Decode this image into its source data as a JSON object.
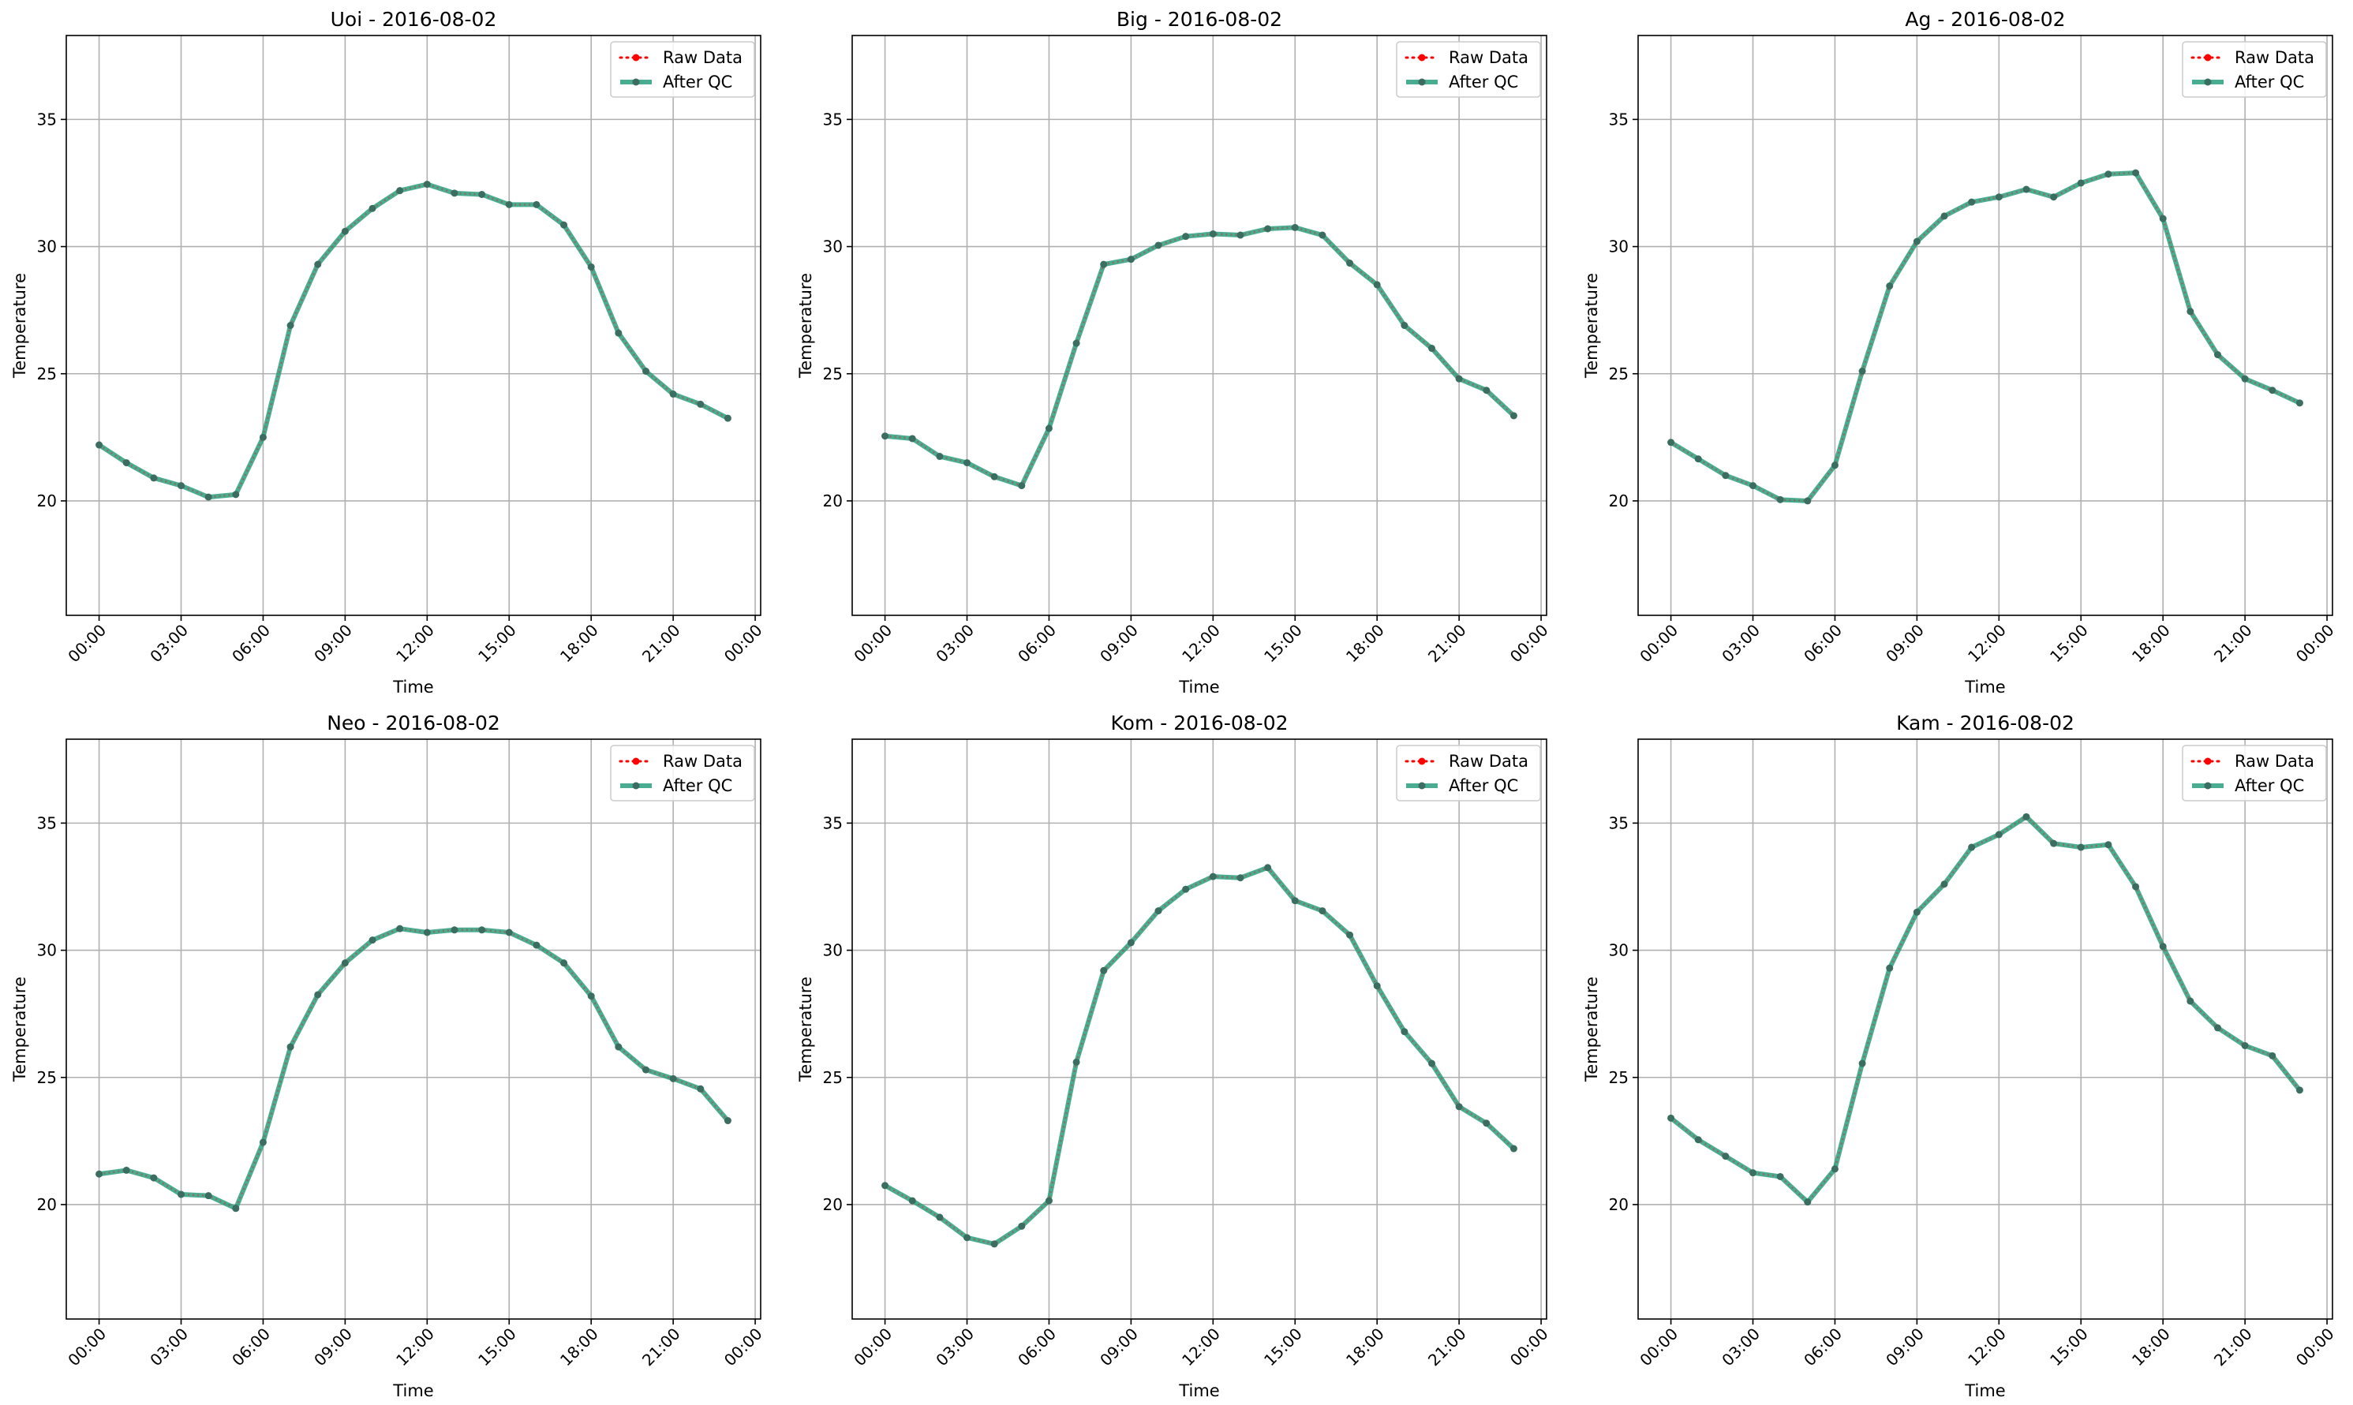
{
  "colors": {
    "raw": "#ff0000",
    "qc": "#2a9d7c",
    "qc_marker": "#3b6e60",
    "grid": "#b0b0b0",
    "axes": "#000000",
    "legend_border": "#cccccc"
  },
  "legend": {
    "raw_label": "Raw Data",
    "qc_label": "After QC",
    "placement": "upper right"
  },
  "chart_data": [
    {
      "type": "line",
      "title": "Uoi - 2016-08-02",
      "xlabel": "Time",
      "ylabel": "Temperature",
      "x": [
        0,
        1,
        2,
        3,
        4,
        5,
        6,
        7,
        8,
        9,
        10,
        11,
        12,
        13,
        14,
        15,
        16,
        17,
        18,
        19,
        20,
        21,
        22,
        23
      ],
      "x_unit": "hour",
      "xlim": [
        -1.2,
        24.2
      ],
      "ylim": [
        15.5,
        38.3
      ],
      "xticks": [
        "00:00",
        "03:00",
        "06:00",
        "09:00",
        "12:00",
        "15:00",
        "18:00",
        "21:00",
        "00:00"
      ],
      "yticks": [
        20,
        25,
        30,
        35
      ],
      "grid": true,
      "series": [
        {
          "name": "Raw Data",
          "values": [
            22.2,
            21.5,
            20.9,
            20.6,
            20.15,
            20.25,
            22.5,
            26.9,
            29.3,
            30.6,
            31.5,
            32.2,
            32.45,
            32.1,
            32.05,
            31.65,
            31.65,
            30.85,
            29.2,
            26.6,
            25.1,
            24.2,
            23.8,
            23.25
          ]
        },
        {
          "name": "After QC",
          "values": [
            22.2,
            21.5,
            20.9,
            20.6,
            20.15,
            20.25,
            22.5,
            26.9,
            29.3,
            30.6,
            31.5,
            32.2,
            32.45,
            32.1,
            32.05,
            31.65,
            31.65,
            30.85,
            29.2,
            26.6,
            25.1,
            24.2,
            23.8,
            23.25
          ]
        }
      ]
    },
    {
      "type": "line",
      "title": "Big - 2016-08-02",
      "xlabel": "Time",
      "ylabel": "Temperature",
      "x": [
        0,
        1,
        2,
        3,
        4,
        5,
        6,
        7,
        8,
        9,
        10,
        11,
        12,
        13,
        14,
        15,
        16,
        17,
        18,
        19,
        20,
        21,
        22,
        23
      ],
      "x_unit": "hour",
      "xlim": [
        -1.2,
        24.2
      ],
      "ylim": [
        15.5,
        38.3
      ],
      "xticks": [
        "00:00",
        "03:00",
        "06:00",
        "09:00",
        "12:00",
        "15:00",
        "18:00",
        "21:00",
        "00:00"
      ],
      "yticks": [
        20,
        25,
        30,
        35
      ],
      "grid": true,
      "series": [
        {
          "name": "Raw Data",
          "values": [
            22.55,
            22.45,
            21.75,
            21.5,
            20.95,
            20.6,
            22.85,
            26.2,
            29.3,
            29.5,
            30.05,
            30.4,
            30.5,
            30.45,
            30.7,
            30.75,
            30.45,
            29.35,
            28.5,
            26.9,
            26.0,
            24.8,
            24.35,
            23.35
          ]
        },
        {
          "name": "After QC",
          "values": [
            22.55,
            22.45,
            21.75,
            21.5,
            20.95,
            20.6,
            22.85,
            26.2,
            29.3,
            29.5,
            30.05,
            30.4,
            30.5,
            30.45,
            30.7,
            30.75,
            30.45,
            29.35,
            28.5,
            26.9,
            26.0,
            24.8,
            24.35,
            23.35
          ]
        }
      ]
    },
    {
      "type": "line",
      "title": "Ag - 2016-08-02",
      "xlabel": "Time",
      "ylabel": "Temperature",
      "x": [
        0,
        1,
        2,
        3,
        4,
        5,
        6,
        7,
        8,
        9,
        10,
        11,
        12,
        13,
        14,
        15,
        16,
        17,
        18,
        19,
        20,
        21,
        22,
        23
      ],
      "x_unit": "hour",
      "xlim": [
        -1.2,
        24.2
      ],
      "ylim": [
        15.5,
        38.3
      ],
      "xticks": [
        "00:00",
        "03:00",
        "06:00",
        "09:00",
        "12:00",
        "15:00",
        "18:00",
        "21:00",
        "00:00"
      ],
      "yticks": [
        20,
        25,
        30,
        35
      ],
      "grid": true,
      "series": [
        {
          "name": "Raw Data",
          "values": [
            22.3,
            21.65,
            21.0,
            20.6,
            20.05,
            20.0,
            21.4,
            25.1,
            28.45,
            30.2,
            31.2,
            31.75,
            31.95,
            32.25,
            31.95,
            32.5,
            32.85,
            32.9,
            31.1,
            27.45,
            25.75,
            24.8,
            24.35,
            23.85
          ]
        },
        {
          "name": "After QC",
          "values": [
            22.3,
            21.65,
            21.0,
            20.6,
            20.05,
            20.0,
            21.4,
            25.1,
            28.45,
            30.2,
            31.2,
            31.75,
            31.95,
            32.25,
            31.95,
            32.5,
            32.85,
            32.9,
            31.1,
            27.45,
            25.75,
            24.8,
            24.35,
            23.85
          ]
        }
      ]
    },
    {
      "type": "line",
      "title": "Neo - 2016-08-02",
      "xlabel": "Time",
      "ylabel": "Temperature",
      "x": [
        0,
        1,
        2,
        3,
        4,
        5,
        6,
        7,
        8,
        9,
        10,
        11,
        12,
        13,
        14,
        15,
        16,
        17,
        18,
        19,
        20,
        21,
        22,
        23
      ],
      "x_unit": "hour",
      "xlim": [
        -1.2,
        24.2
      ],
      "ylim": [
        15.5,
        38.3
      ],
      "xticks": [
        "00:00",
        "03:00",
        "06:00",
        "09:00",
        "12:00",
        "15:00",
        "18:00",
        "21:00",
        "00:00"
      ],
      "yticks": [
        20,
        25,
        30,
        35
      ],
      "grid": true,
      "series": [
        {
          "name": "Raw Data",
          "values": [
            21.2,
            21.35,
            21.05,
            20.4,
            20.35,
            19.85,
            22.45,
            26.2,
            28.25,
            29.5,
            30.4,
            30.85,
            30.7,
            30.8,
            30.8,
            30.7,
            30.2,
            29.5,
            28.2,
            26.2,
            25.3,
            24.95,
            24.55,
            23.3
          ]
        },
        {
          "name": "After QC",
          "values": [
            21.2,
            21.35,
            21.05,
            20.4,
            20.35,
            19.85,
            22.45,
            26.2,
            28.25,
            29.5,
            30.4,
            30.85,
            30.7,
            30.8,
            30.8,
            30.7,
            30.2,
            29.5,
            28.2,
            26.2,
            25.3,
            24.95,
            24.55,
            23.3
          ]
        }
      ]
    },
    {
      "type": "line",
      "title": "Kom - 2016-08-02",
      "xlabel": "Time",
      "ylabel": "Temperature",
      "x": [
        0,
        1,
        2,
        3,
        4,
        5,
        6,
        7,
        8,
        9,
        10,
        11,
        12,
        13,
        14,
        15,
        16,
        17,
        18,
        19,
        20,
        21,
        22,
        23
      ],
      "x_unit": "hour",
      "xlim": [
        -1.2,
        24.2
      ],
      "ylim": [
        15.5,
        38.3
      ],
      "xticks": [
        "00:00",
        "03:00",
        "06:00",
        "09:00",
        "12:00",
        "15:00",
        "18:00",
        "21:00",
        "00:00"
      ],
      "yticks": [
        20,
        25,
        30,
        35
      ],
      "grid": true,
      "series": [
        {
          "name": "Raw Data",
          "values": [
            20.75,
            20.15,
            19.5,
            18.7,
            18.45,
            19.15,
            20.15,
            25.6,
            29.2,
            30.3,
            31.55,
            32.4,
            32.9,
            32.85,
            33.25,
            31.95,
            31.55,
            30.6,
            28.6,
            26.8,
            25.55,
            23.85,
            23.2,
            22.2
          ]
        },
        {
          "name": "After QC",
          "values": [
            20.75,
            20.15,
            19.5,
            18.7,
            18.45,
            19.15,
            20.15,
            25.6,
            29.2,
            30.3,
            31.55,
            32.4,
            32.9,
            32.85,
            33.25,
            31.95,
            31.55,
            30.6,
            28.6,
            26.8,
            25.55,
            23.85,
            23.2,
            22.2
          ]
        }
      ]
    },
    {
      "type": "line",
      "title": "Kam - 2016-08-02",
      "xlabel": "Time",
      "ylabel": "Temperature",
      "x": [
        0,
        1,
        2,
        3,
        4,
        5,
        6,
        7,
        8,
        9,
        10,
        11,
        12,
        13,
        14,
        15,
        16,
        17,
        18,
        19,
        20,
        21,
        22,
        23
      ],
      "x_unit": "hour",
      "xlim": [
        -1.2,
        24.2
      ],
      "ylim": [
        15.5,
        38.3
      ],
      "xticks": [
        "00:00",
        "03:00",
        "06:00",
        "09:00",
        "12:00",
        "15:00",
        "18:00",
        "21:00",
        "00:00"
      ],
      "yticks": [
        20,
        25,
        30,
        35
      ],
      "grid": true,
      "series": [
        {
          "name": "Raw Data",
          "values": [
            23.4,
            22.55,
            21.9,
            21.25,
            21.1,
            20.1,
            21.4,
            25.55,
            29.3,
            31.5,
            32.6,
            34.05,
            34.55,
            35.25,
            34.2,
            34.05,
            34.15,
            32.5,
            30.15,
            28.0,
            26.95,
            26.25,
            25.85,
            24.5
          ]
        },
        {
          "name": "After QC",
          "values": [
            23.4,
            22.55,
            21.9,
            21.25,
            21.1,
            20.1,
            21.4,
            25.55,
            29.3,
            31.5,
            32.6,
            34.05,
            34.55,
            35.25,
            34.2,
            34.05,
            34.15,
            32.5,
            30.15,
            28.0,
            26.95,
            26.25,
            25.85,
            24.5
          ]
        }
      ]
    }
  ]
}
